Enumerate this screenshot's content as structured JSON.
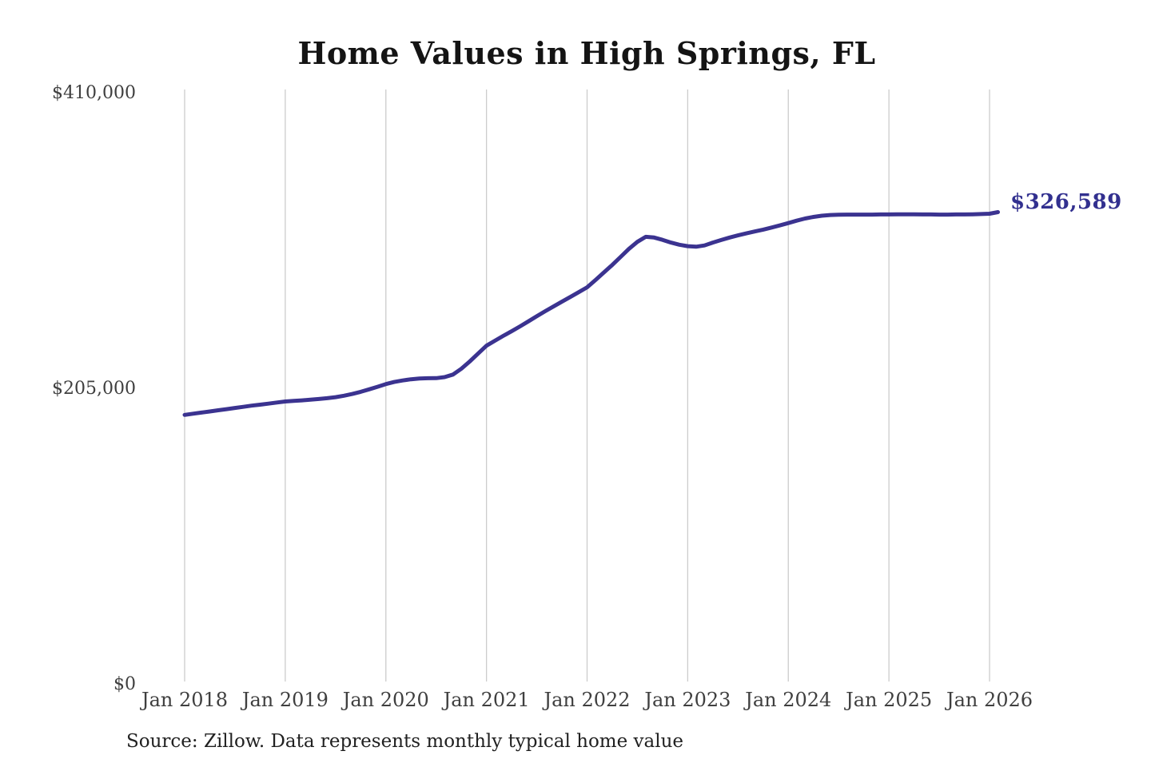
{
  "chart_data": {
    "type": "line",
    "title": "Home Values in High Springs, FL",
    "source": "Source: Zillow. Data represents monthly typical home value",
    "end_label": "$326,589",
    "latest_value": 326589,
    "ylim": [
      0,
      410000
    ],
    "grid": "vertical-only",
    "legend": "none",
    "y_ticks": [
      {
        "value": 0,
        "label": "$0"
      },
      {
        "value": 205000,
        "label": "$205,000"
      },
      {
        "value": 410000,
        "label": "$410,000"
      }
    ],
    "x_ticks": [
      "Jan 2018",
      "Jan 2019",
      "Jan 2020",
      "Jan 2021",
      "Jan 2022",
      "Jan 2023",
      "Jan 2024",
      "Jan 2025",
      "Jan 2026"
    ],
    "series": [
      {
        "name": "Monthly typical home value",
        "start_month": "Jan 2018",
        "frequency": "monthly",
        "values": [
          186000,
          186800,
          187600,
          188400,
          189200,
          190000,
          190800,
          191600,
          192400,
          193100,
          193800,
          194600,
          195300,
          195700,
          196100,
          196500,
          197000,
          197600,
          198300,
          199300,
          200500,
          202000,
          203700,
          205500,
          207400,
          208800,
          209900,
          210700,
          211200,
          211400,
          211500,
          212200,
          214000,
          218000,
          223000,
          228500,
          234000,
          237400,
          240800,
          244000,
          247400,
          250900,
          254500,
          257900,
          261200,
          264500,
          267800,
          271100,
          274500,
          279500,
          284800,
          290000,
          295600,
          301200,
          306000,
          309500,
          309000,
          307400,
          305500,
          304000,
          303000,
          302600,
          303500,
          305500,
          307300,
          309000,
          310500,
          311900,
          313200,
          314500,
          315900,
          317400,
          319000,
          320700,
          322200,
          323300,
          324100,
          324600,
          324800,
          324900,
          324900,
          324900,
          324900,
          325000,
          325000,
          325100,
          325100,
          325100,
          325000,
          325000,
          324900,
          324900,
          325000,
          325000,
          325100,
          325300,
          325500,
          326589
        ]
      }
    ],
    "colors": {
      "line": "#3b3390",
      "end_label": "#32308f",
      "grid": "#cccccc",
      "tick_text": "#3f3f3f",
      "title_text": "#141414",
      "background": "#ffffff"
    }
  }
}
